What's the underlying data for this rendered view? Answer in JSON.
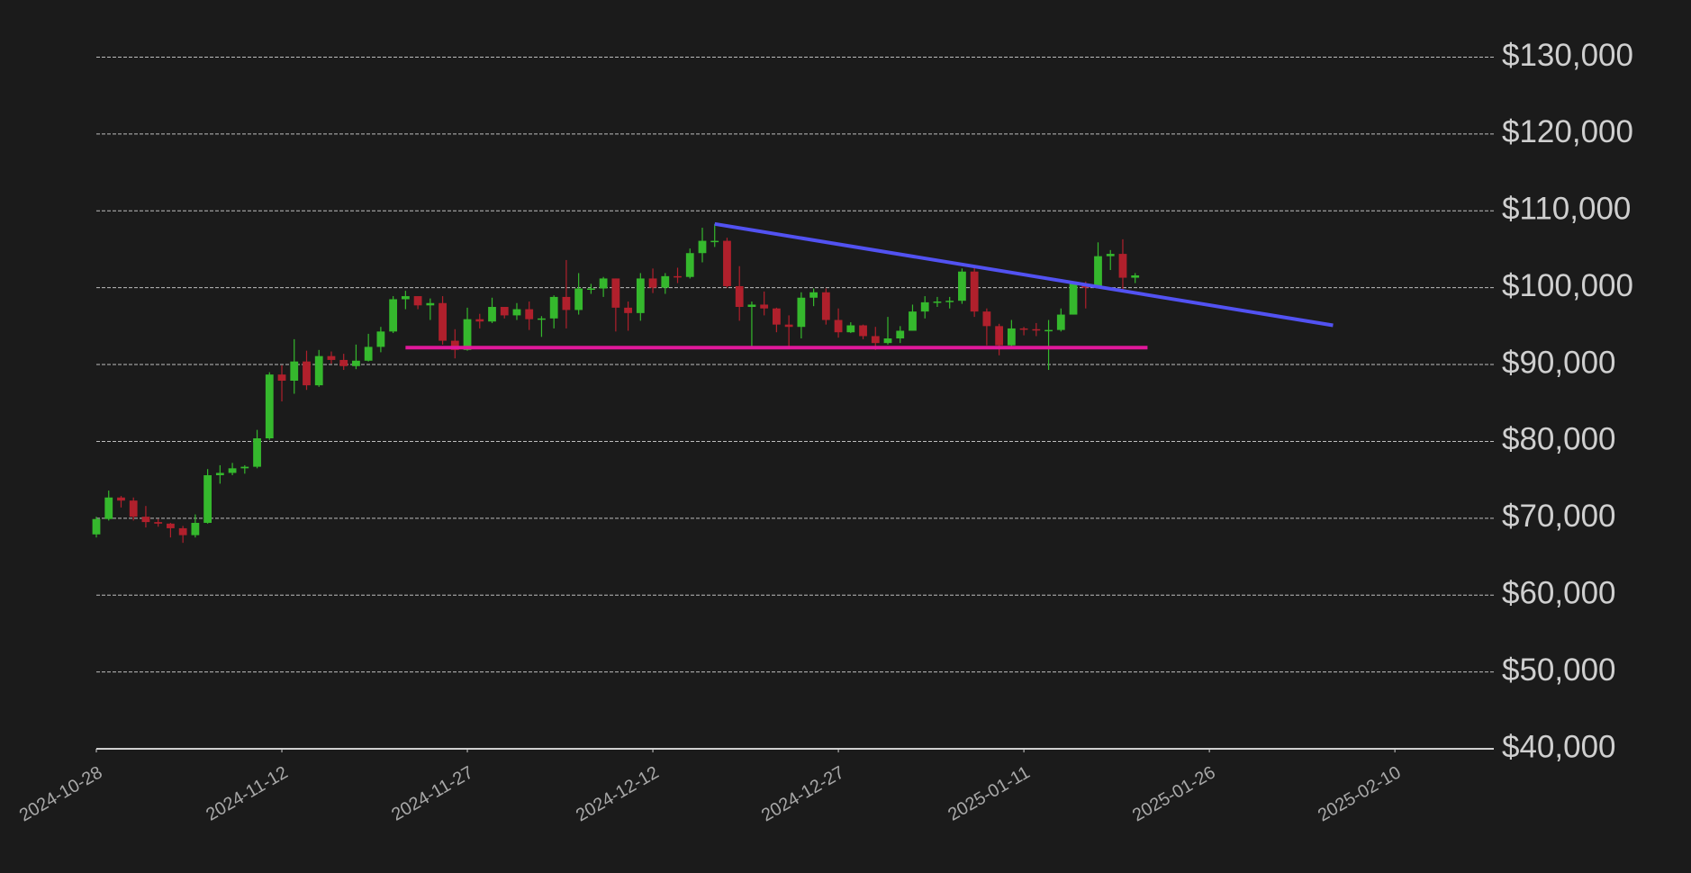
{
  "chart_data": {
    "type": "candlestick",
    "x": [
      "2024-10-28",
      "2024-10-29",
      "2024-10-30",
      "2024-10-31",
      "2024-11-01",
      "2024-11-02",
      "2024-11-03",
      "2024-11-04",
      "2024-11-05",
      "2024-11-06",
      "2024-11-07",
      "2024-11-08",
      "2024-11-09",
      "2024-11-10",
      "2024-11-11",
      "2024-11-12",
      "2024-11-13",
      "2024-11-14",
      "2024-11-15",
      "2024-11-16",
      "2024-11-17",
      "2024-11-18",
      "2024-11-19",
      "2024-11-20",
      "2024-11-21",
      "2024-11-22",
      "2024-11-23",
      "2024-11-24",
      "2024-11-25",
      "2024-11-26",
      "2024-11-27",
      "2024-11-28",
      "2024-11-29",
      "2024-11-30",
      "2024-12-01",
      "2024-12-02",
      "2024-12-03",
      "2024-12-04",
      "2024-12-05",
      "2024-12-06",
      "2024-12-07",
      "2024-12-08",
      "2024-12-09",
      "2024-12-10",
      "2024-12-11",
      "2024-12-12",
      "2024-12-13",
      "2024-12-14",
      "2024-12-15",
      "2024-12-16",
      "2024-12-17",
      "2024-12-18",
      "2024-12-19",
      "2024-12-20",
      "2024-12-21",
      "2024-12-22",
      "2024-12-23",
      "2024-12-24",
      "2024-12-25",
      "2024-12-26",
      "2024-12-27",
      "2024-12-28",
      "2024-12-29",
      "2024-12-30",
      "2024-12-31",
      "2025-01-01",
      "2025-01-02",
      "2025-01-03",
      "2025-01-04",
      "2025-01-05",
      "2025-01-06",
      "2025-01-07",
      "2025-01-08",
      "2025-01-09",
      "2025-01-10",
      "2025-01-11",
      "2025-01-12",
      "2025-01-13",
      "2025-01-14",
      "2025-01-15",
      "2025-01-16",
      "2025-01-17",
      "2025-01-18",
      "2025-01-19",
      "2025-01-20"
    ],
    "open": [
      67900,
      69900,
      72700,
      72300,
      70200,
      69500,
      69300,
      68700,
      67800,
      69400,
      75600,
      75900,
      76500,
      76700,
      80400,
      88700,
      87900,
      90400,
      87300,
      91100,
      90600,
      89800,
      90500,
      92300,
      94300,
      98500,
      98900,
      97700,
      98000,
      93100,
      91900,
      95900,
      95600,
      97500,
      96400,
      97200,
      95900,
      96000,
      98800,
      97100,
      99900,
      99900,
      101200,
      97400,
      96700,
      101200,
      100000,
      101500,
      101400,
      104500,
      106100,
      106100,
      100200,
      97500,
      97800,
      97300,
      95200,
      94900,
      98700,
      99400,
      95800,
      94200,
      95100,
      93700,
      92800,
      93400,
      94400,
      96900,
      98100,
      98200,
      98300,
      102100,
      96900,
      95000,
      92500,
      94700,
      94600,
      94500,
      94500,
      96500,
      100500,
      100000,
      104100,
      104400,
      101300
    ],
    "high": [
      70200,
      73600,
      72900,
      72700,
      71600,
      69900,
      69400,
      69000,
      70500,
      76400,
      76900,
      77200,
      76900,
      81500,
      89000,
      89900,
      93300,
      91800,
      91900,
      91700,
      91400,
      92600,
      94000,
      94900,
      98900,
      99600,
      98800,
      98600,
      98900,
      94600,
      97400,
      96600,
      98700,
      97500,
      98000,
      98200,
      96300,
      99000,
      103600,
      101900,
      100500,
      101400,
      101200,
      98200,
      101900,
      102500,
      101900,
      102600,
      105100,
      107800,
      108300,
      106500,
      102800,
      98200,
      99500,
      97400,
      96400,
      99400,
      99900,
      99900,
      97300,
      95500,
      95200,
      94900,
      96200,
      95000,
      97800,
      98900,
      98800,
      98800,
      102500,
      102700,
      97300,
      95300,
      95800,
      94900,
      95400,
      95800,
      97300,
      100700,
      100800,
      105900,
      104900,
      106300,
      101900
    ],
    "low": [
      67500,
      69700,
      71400,
      69700,
      68800,
      68900,
      67500,
      66800,
      67500,
      69300,
      74500,
      75600,
      75800,
      76500,
      80200,
      85200,
      86200,
      86700,
      87100,
      90100,
      89300,
      89400,
      90400,
      91600,
      94100,
      97200,
      97200,
      95800,
      92600,
      90800,
      91800,
      94700,
      95400,
      96000,
      95800,
      94500,
      93600,
      94700,
      94700,
      96500,
      99200,
      98800,
      94300,
      94400,
      95700,
      99300,
      99200,
      100600,
      101200,
      103300,
      105300,
      100000,
      95700,
      92200,
      96400,
      94200,
      92400,
      93400,
      97600,
      95200,
      93500,
      94100,
      93300,
      91900,
      92600,
      92800,
      94400,
      96000,
      97500,
      97300,
      97900,
      96200,
      92500,
      91200,
      92300,
      93800,
      93700,
      89300,
      94300,
      96500,
      97300,
      99900,
      102300,
      99600,
      100600
    ],
    "close": [
      69900,
      72700,
      72300,
      70200,
      69500,
      69300,
      68700,
      67800,
      69400,
      75600,
      75900,
      76500,
      76700,
      80400,
      88700,
      87900,
      90400,
      87300,
      91100,
      90600,
      89800,
      90500,
      92300,
      94300,
      98500,
      98900,
      97700,
      98000,
      93100,
      91900,
      95900,
      95600,
      97500,
      96400,
      97200,
      95900,
      96000,
      98800,
      97100,
      99900,
      99900,
      101200,
      97400,
      96700,
      101200,
      100000,
      101500,
      101400,
      104500,
      106100,
      106100,
      100200,
      97500,
      97800,
      97300,
      95200,
      94900,
      98700,
      99400,
      95800,
      94200,
      95100,
      93700,
      92800,
      93400,
      94400,
      96900,
      98100,
      98200,
      98300,
      102100,
      96900,
      95000,
      92500,
      94700,
      94600,
      94500,
      94500,
      96500,
      100500,
      100000,
      104100,
      104400,
      101300,
      101600
    ],
    "up_color": "#35b82d",
    "down_color": "#b0202c",
    "lines": [
      {
        "x": [
          "2024-12-17",
          "2025-02-05"
        ],
        "y": [
          108300,
          95100
        ],
        "color": "#5252f2"
      },
      {
        "x": [
          "2024-11-22",
          "2025-01-21"
        ],
        "y": [
          92200,
          92200
        ],
        "color": "#e0189a"
      }
    ],
    "xlim": [
      "2024-10-28",
      "2025-02-18"
    ],
    "xticks": [
      "2024-10-28",
      "2024-11-12",
      "2024-11-27",
      "2024-12-12",
      "2024-12-27",
      "2025-01-11",
      "2025-01-26",
      "2025-02-10"
    ],
    "ylim": [
      40000,
      130000
    ],
    "yticks": [
      {
        "value": 40000,
        "label": "$40,000"
      },
      {
        "value": 50000,
        "label": "$50,000"
      },
      {
        "value": 60000,
        "label": "$60,000"
      },
      {
        "value": 70000,
        "label": "$70,000"
      },
      {
        "value": 80000,
        "label": "$80,000"
      },
      {
        "value": 90000,
        "label": "$90,000"
      },
      {
        "value": 100000,
        "label": "$100,000"
      },
      {
        "value": 110000,
        "label": "$110,000"
      },
      {
        "value": 120000,
        "label": "$120,000"
      },
      {
        "value": 130000,
        "label": "$130,000"
      }
    ],
    "grid": true
  }
}
